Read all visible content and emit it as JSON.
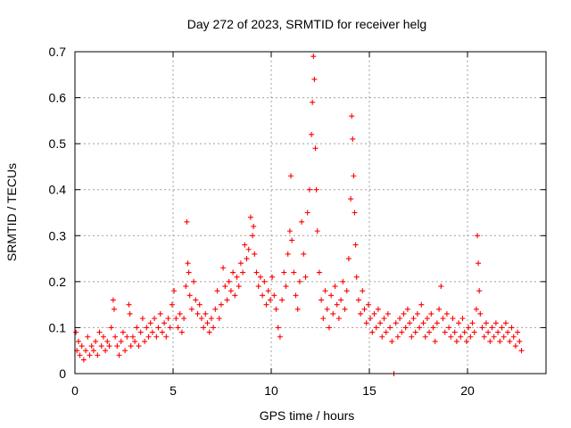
{
  "chart_data": {
    "type": "scatter",
    "title": "Day 272 of 2023, SRMTID for receiver helg",
    "xlabel": "GPS time / hours",
    "ylabel": "SRMTID / TECUs",
    "xlim": [
      0,
      24
    ],
    "ylim": [
      0,
      0.7
    ],
    "xticks": [
      0,
      5,
      10,
      15,
      20
    ],
    "xtick_labels": [
      "0",
      "5",
      "10",
      "15",
      "20"
    ],
    "yticks": [
      0,
      0.1,
      0.2,
      0.3,
      0.4,
      0.5,
      0.6,
      0.7
    ],
    "ytick_labels": [
      "0",
      "0.1",
      "0.2",
      "0.3",
      "0.4",
      "0.5",
      "0.6",
      "0.7"
    ],
    "grid": true,
    "marker": "+",
    "series": [
      {
        "name": "SRMTID",
        "color": "#ff0000",
        "points": [
          [
            0.05,
            0.09
          ],
          [
            0.1,
            0.05
          ],
          [
            0.18,
            0.07
          ],
          [
            0.25,
            0.04
          ],
          [
            0.35,
            0.06
          ],
          [
            0.45,
            0.03
          ],
          [
            0.55,
            0.05
          ],
          [
            0.65,
            0.08
          ],
          [
            0.75,
            0.04
          ],
          [
            0.85,
            0.06
          ],
          [
            0.95,
            0.05
          ],
          [
            1.05,
            0.07
          ],
          [
            1.15,
            0.04
          ],
          [
            1.25,
            0.09
          ],
          [
            1.35,
            0.06
          ],
          [
            1.45,
            0.08
          ],
          [
            1.55,
            0.05
          ],
          [
            1.65,
            0.07
          ],
          [
            1.75,
            0.06
          ],
          [
            1.85,
            0.1
          ],
          [
            1.95,
            0.16
          ],
          [
            2.0,
            0.14
          ],
          [
            2.05,
            0.08
          ],
          [
            2.15,
            0.06
          ],
          [
            2.25,
            0.04
          ],
          [
            2.35,
            0.07
          ],
          [
            2.45,
            0.09
          ],
          [
            2.55,
            0.05
          ],
          [
            2.65,
            0.08
          ],
          [
            2.75,
            0.15
          ],
          [
            2.8,
            0.13
          ],
          [
            2.85,
            0.06
          ],
          [
            2.95,
            0.08
          ],
          [
            3.05,
            0.07
          ],
          [
            3.15,
            0.1
          ],
          [
            3.25,
            0.06
          ],
          [
            3.35,
            0.09
          ],
          [
            3.45,
            0.12
          ],
          [
            3.55,
            0.07
          ],
          [
            3.65,
            0.1
          ],
          [
            3.75,
            0.08
          ],
          [
            3.85,
            0.11
          ],
          [
            3.95,
            0.09
          ],
          [
            4.05,
            0.12
          ],
          [
            4.15,
            0.08
          ],
          [
            4.25,
            0.1
          ],
          [
            4.35,
            0.13
          ],
          [
            4.45,
            0.09
          ],
          [
            4.55,
            0.11
          ],
          [
            4.65,
            0.08
          ],
          [
            4.75,
            0.12
          ],
          [
            4.85,
            0.1
          ],
          [
            4.95,
            0.15
          ],
          [
            5.05,
            0.18
          ],
          [
            5.15,
            0.12
          ],
          [
            5.25,
            0.1
          ],
          [
            5.35,
            0.13
          ],
          [
            5.45,
            0.09
          ],
          [
            5.55,
            0.12
          ],
          [
            5.65,
            0.19
          ],
          [
            5.7,
            0.33
          ],
          [
            5.75,
            0.24
          ],
          [
            5.8,
            0.22
          ],
          [
            5.85,
            0.17
          ],
          [
            5.95,
            0.14
          ],
          [
            6.05,
            0.2
          ],
          [
            6.15,
            0.16
          ],
          [
            6.25,
            0.13
          ],
          [
            6.35,
            0.15
          ],
          [
            6.45,
            0.12
          ],
          [
            6.55,
            0.1
          ],
          [
            6.65,
            0.13
          ],
          [
            6.75,
            0.11
          ],
          [
            6.85,
            0.09
          ],
          [
            6.95,
            0.12
          ],
          [
            7.05,
            0.1
          ],
          [
            7.15,
            0.14
          ],
          [
            7.25,
            0.18
          ],
          [
            7.35,
            0.12
          ],
          [
            7.45,
            0.15
          ],
          [
            7.55,
            0.23
          ],
          [
            7.65,
            0.19
          ],
          [
            7.75,
            0.16
          ],
          [
            7.85,
            0.2
          ],
          [
            7.95,
            0.18
          ],
          [
            8.05,
            0.22
          ],
          [
            8.15,
            0.17
          ],
          [
            8.25,
            0.21
          ],
          [
            8.35,
            0.19
          ],
          [
            8.45,
            0.24
          ],
          [
            8.55,
            0.22
          ],
          [
            8.65,
            0.28
          ],
          [
            8.75,
            0.25
          ],
          [
            8.85,
            0.27
          ],
          [
            8.95,
            0.34
          ],
          [
            9.05,
            0.3
          ],
          [
            9.1,
            0.32
          ],
          [
            9.15,
            0.26
          ],
          [
            9.25,
            0.22
          ],
          [
            9.35,
            0.19
          ],
          [
            9.45,
            0.21
          ],
          [
            9.55,
            0.17
          ],
          [
            9.65,
            0.2
          ],
          [
            9.75,
            0.15
          ],
          [
            9.85,
            0.18
          ],
          [
            9.95,
            0.16
          ],
          [
            10.05,
            0.21
          ],
          [
            10.15,
            0.17
          ],
          [
            10.25,
            0.14
          ],
          [
            10.35,
            0.1
          ],
          [
            10.45,
            0.08
          ],
          [
            10.55,
            0.16
          ],
          [
            10.65,
            0.22
          ],
          [
            10.75,
            0.19
          ],
          [
            10.85,
            0.26
          ],
          [
            10.95,
            0.31
          ],
          [
            11.0,
            0.43
          ],
          [
            11.05,
            0.29
          ],
          [
            11.15,
            0.22
          ],
          [
            11.25,
            0.17
          ],
          [
            11.35,
            0.14
          ],
          [
            11.45,
            0.2
          ],
          [
            11.55,
            0.33
          ],
          [
            11.65,
            0.26
          ],
          [
            11.75,
            0.21
          ],
          [
            11.85,
            0.35
          ],
          [
            11.95,
            0.4
          ],
          [
            12.05,
            0.52
          ],
          [
            12.1,
            0.59
          ],
          [
            12.15,
            0.69
          ],
          [
            12.2,
            0.64
          ],
          [
            12.25,
            0.49
          ],
          [
            12.3,
            0.4
          ],
          [
            12.35,
            0.31
          ],
          [
            12.45,
            0.22
          ],
          [
            12.55,
            0.16
          ],
          [
            12.65,
            0.12
          ],
          [
            12.75,
            0.18
          ],
          [
            12.85,
            0.14
          ],
          [
            12.95,
            0.1
          ],
          [
            13.05,
            0.17
          ],
          [
            13.15,
            0.13
          ],
          [
            13.25,
            0.19
          ],
          [
            13.35,
            0.15
          ],
          [
            13.45,
            0.12
          ],
          [
            13.55,
            0.16
          ],
          [
            13.65,
            0.2
          ],
          [
            13.75,
            0.14
          ],
          [
            13.85,
            0.18
          ],
          [
            13.95,
            0.25
          ],
          [
            14.05,
            0.38
          ],
          [
            14.1,
            0.56
          ],
          [
            14.15,
            0.51
          ],
          [
            14.2,
            0.43
          ],
          [
            14.25,
            0.35
          ],
          [
            14.3,
            0.28
          ],
          [
            14.35,
            0.21
          ],
          [
            14.45,
            0.16
          ],
          [
            14.55,
            0.13
          ],
          [
            14.65,
            0.18
          ],
          [
            14.75,
            0.14
          ],
          [
            14.85,
            0.11
          ],
          [
            14.95,
            0.15
          ],
          [
            15.05,
            0.12
          ],
          [
            15.15,
            0.09
          ],
          [
            15.25,
            0.13
          ],
          [
            15.35,
            0.1
          ],
          [
            15.45,
            0.14
          ],
          [
            15.55,
            0.11
          ],
          [
            15.65,
            0.08
          ],
          [
            15.75,
            0.12
          ],
          [
            15.85,
            0.09
          ],
          [
            15.95,
            0.13
          ],
          [
            16.05,
            0.1
          ],
          [
            16.15,
            0.07
          ],
          [
            16.25,
            0.0
          ],
          [
            16.35,
            0.11
          ],
          [
            16.45,
            0.08
          ],
          [
            16.55,
            0.12
          ],
          [
            16.65,
            0.09
          ],
          [
            16.75,
            0.13
          ],
          [
            16.85,
            0.1
          ],
          [
            16.95,
            0.14
          ],
          [
            17.05,
            0.11
          ],
          [
            17.15,
            0.08
          ],
          [
            17.25,
            0.12
          ],
          [
            17.35,
            0.09
          ],
          [
            17.45,
            0.13
          ],
          [
            17.55,
            0.1
          ],
          [
            17.65,
            0.15
          ],
          [
            17.75,
            0.11
          ],
          [
            17.85,
            0.08
          ],
          [
            17.95,
            0.12
          ],
          [
            18.05,
            0.09
          ],
          [
            18.15,
            0.13
          ],
          [
            18.25,
            0.1
          ],
          [
            18.35,
            0.07
          ],
          [
            18.45,
            0.11
          ],
          [
            18.55,
            0.14
          ],
          [
            18.65,
            0.19
          ],
          [
            18.75,
            0.12
          ],
          [
            18.85,
            0.09
          ],
          [
            18.95,
            0.13
          ],
          [
            19.05,
            0.1
          ],
          [
            19.15,
            0.08
          ],
          [
            19.25,
            0.12
          ],
          [
            19.35,
            0.09
          ],
          [
            19.45,
            0.07
          ],
          [
            19.55,
            0.11
          ],
          [
            19.65,
            0.08
          ],
          [
            19.75,
            0.12
          ],
          [
            19.85,
            0.09
          ],
          [
            19.95,
            0.07
          ],
          [
            20.05,
            0.1
          ],
          [
            20.15,
            0.08
          ],
          [
            20.25,
            0.11
          ],
          [
            20.35,
            0.09
          ],
          [
            20.45,
            0.14
          ],
          [
            20.5,
            0.3
          ],
          [
            20.55,
            0.24
          ],
          [
            20.6,
            0.18
          ],
          [
            20.65,
            0.13
          ],
          [
            20.75,
            0.1
          ],
          [
            20.85,
            0.08
          ],
          [
            20.95,
            0.11
          ],
          [
            21.05,
            0.09
          ],
          [
            21.15,
            0.07
          ],
          [
            21.25,
            0.1
          ],
          [
            21.35,
            0.08
          ],
          [
            21.45,
            0.11
          ],
          [
            21.55,
            0.09
          ],
          [
            21.65,
            0.07
          ],
          [
            21.75,
            0.1
          ],
          [
            21.85,
            0.08
          ],
          [
            21.95,
            0.11
          ],
          [
            22.05,
            0.09
          ],
          [
            22.15,
            0.07
          ],
          [
            22.25,
            0.1
          ],
          [
            22.35,
            0.08
          ],
          [
            22.45,
            0.06
          ],
          [
            22.55,
            0.09
          ],
          [
            22.65,
            0.07
          ],
          [
            22.75,
            0.05
          ]
        ]
      }
    ]
  }
}
